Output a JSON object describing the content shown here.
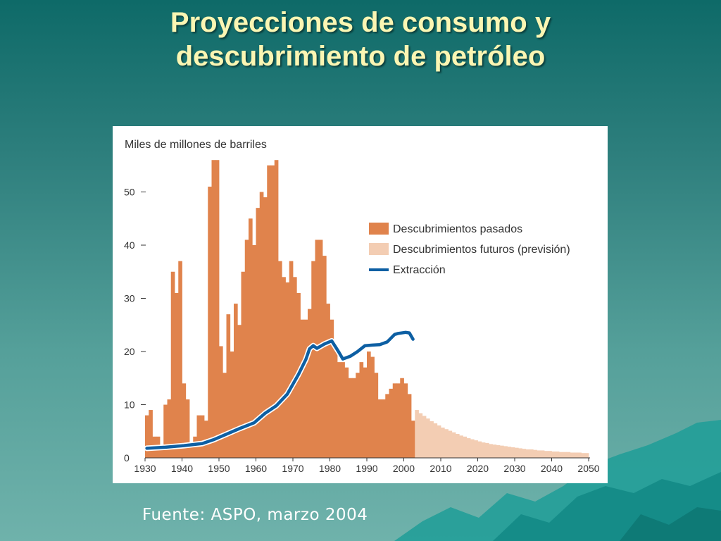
{
  "slide": {
    "title_line1": "Proyecciones de consumo y",
    "title_line2": "descubrimiento de petróleo",
    "source": "Fuente: ASPO, marzo 2004"
  },
  "colors": {
    "past": "#e0834c",
    "future": "#f3cdb3",
    "extraction": "#0d5fa3"
  },
  "chart_data": {
    "type": "bar",
    "ylabel": "Miles de millones de barriles",
    "xlabel": "",
    "ylim": [
      0,
      57
    ],
    "xlim": [
      1930,
      2050
    ],
    "x_ticks": [
      1930,
      1940,
      1950,
      1960,
      1970,
      1980,
      1990,
      2000,
      2010,
      2020,
      2030,
      2040,
      2050
    ],
    "y_ticks": [
      0,
      10,
      20,
      30,
      40,
      50
    ],
    "legend_position": "right",
    "series": [
      {
        "name": "Descubrimientos pasados",
        "type": "bar",
        "x": [
          1930,
          1931,
          1932,
          1933,
          1934,
          1935,
          1936,
          1937,
          1938,
          1939,
          1940,
          1941,
          1942,
          1943,
          1944,
          1945,
          1946,
          1947,
          1948,
          1949,
          1950,
          1951,
          1952,
          1953,
          1954,
          1955,
          1956,
          1957,
          1958,
          1959,
          1960,
          1961,
          1962,
          1963,
          1964,
          1965,
          1966,
          1967,
          1968,
          1969,
          1970,
          1971,
          1972,
          1973,
          1974,
          1975,
          1976,
          1977,
          1978,
          1979,
          1980,
          1981,
          1982,
          1983,
          1984,
          1985,
          1986,
          1987,
          1988,
          1989,
          1990,
          1991,
          1992,
          1993,
          1994,
          1995,
          1996,
          1997,
          1998,
          1999,
          2000,
          2001,
          2002
        ],
        "values": [
          8,
          9,
          4,
          4,
          2,
          10,
          11,
          35,
          31,
          37,
          14,
          11,
          2,
          4,
          8,
          8,
          7,
          51,
          56,
          56,
          21,
          16,
          27,
          20,
          29,
          25,
          35,
          41,
          45,
          40,
          47,
          50,
          49,
          55,
          55,
          56,
          37,
          34,
          33,
          37,
          34,
          31,
          26,
          26,
          28,
          37,
          41,
          41,
          38,
          29,
          26,
          21,
          18,
          18,
          17,
          15,
          15,
          16,
          18,
          17,
          20,
          19,
          16,
          11,
          11,
          12,
          13,
          14,
          14,
          15,
          14,
          12,
          7
        ]
      },
      {
        "name": "Descubrimientos futuros (previsión)",
        "type": "bar",
        "x": [
          2003,
          2004,
          2005,
          2006,
          2007,
          2008,
          2009,
          2010,
          2011,
          2012,
          2013,
          2014,
          2015,
          2016,
          2017,
          2018,
          2019,
          2020,
          2021,
          2022,
          2023,
          2024,
          2025,
          2026,
          2027,
          2028,
          2029,
          2030,
          2031,
          2032,
          2033,
          2034,
          2035,
          2036,
          2037,
          2038,
          2039,
          2040,
          2041,
          2042,
          2043,
          2044,
          2045,
          2046,
          2047,
          2048,
          2049
        ],
        "values": [
          9.0,
          8.4,
          7.9,
          7.4,
          6.9,
          6.5,
          6.1,
          5.7,
          5.4,
          5.1,
          4.8,
          4.5,
          4.2,
          4.0,
          3.7,
          3.5,
          3.3,
          3.1,
          2.9,
          2.8,
          2.6,
          2.5,
          2.4,
          2.3,
          2.2,
          2.1,
          2.0,
          1.9,
          1.8,
          1.7,
          1.6,
          1.6,
          1.5,
          1.4,
          1.4,
          1.3,
          1.3,
          1.2,
          1.2,
          1.1,
          1.1,
          1.1,
          1.0,
          1.0,
          1.0,
          0.9,
          0.9
        ]
      },
      {
        "name": "Extracción",
        "type": "line",
        "x": [
          1930,
          1935,
          1940,
          1945,
          1948,
          1950,
          1955,
          1959,
          1962,
          1965,
          1968,
          1971,
          1973,
          1974,
          1975,
          1976,
          1978,
          1980,
          1981,
          1982,
          1983,
          1985,
          1987,
          1989,
          1991,
          1993,
          1995,
          1997,
          1998,
          2000,
          2001,
          2002
        ],
        "values": [
          1.8,
          2.0,
          2.3,
          2.7,
          3.4,
          4,
          5.5,
          6.6,
          8.4,
          9.8,
          12,
          15.7,
          18.5,
          20.5,
          21.1,
          20.6,
          21.4,
          22,
          20.9,
          19.8,
          18.6,
          19.1,
          20,
          21.1,
          21.2,
          21.3,
          21.8,
          23.2,
          23.4,
          23.6,
          23.5,
          22.3
        ]
      }
    ]
  }
}
